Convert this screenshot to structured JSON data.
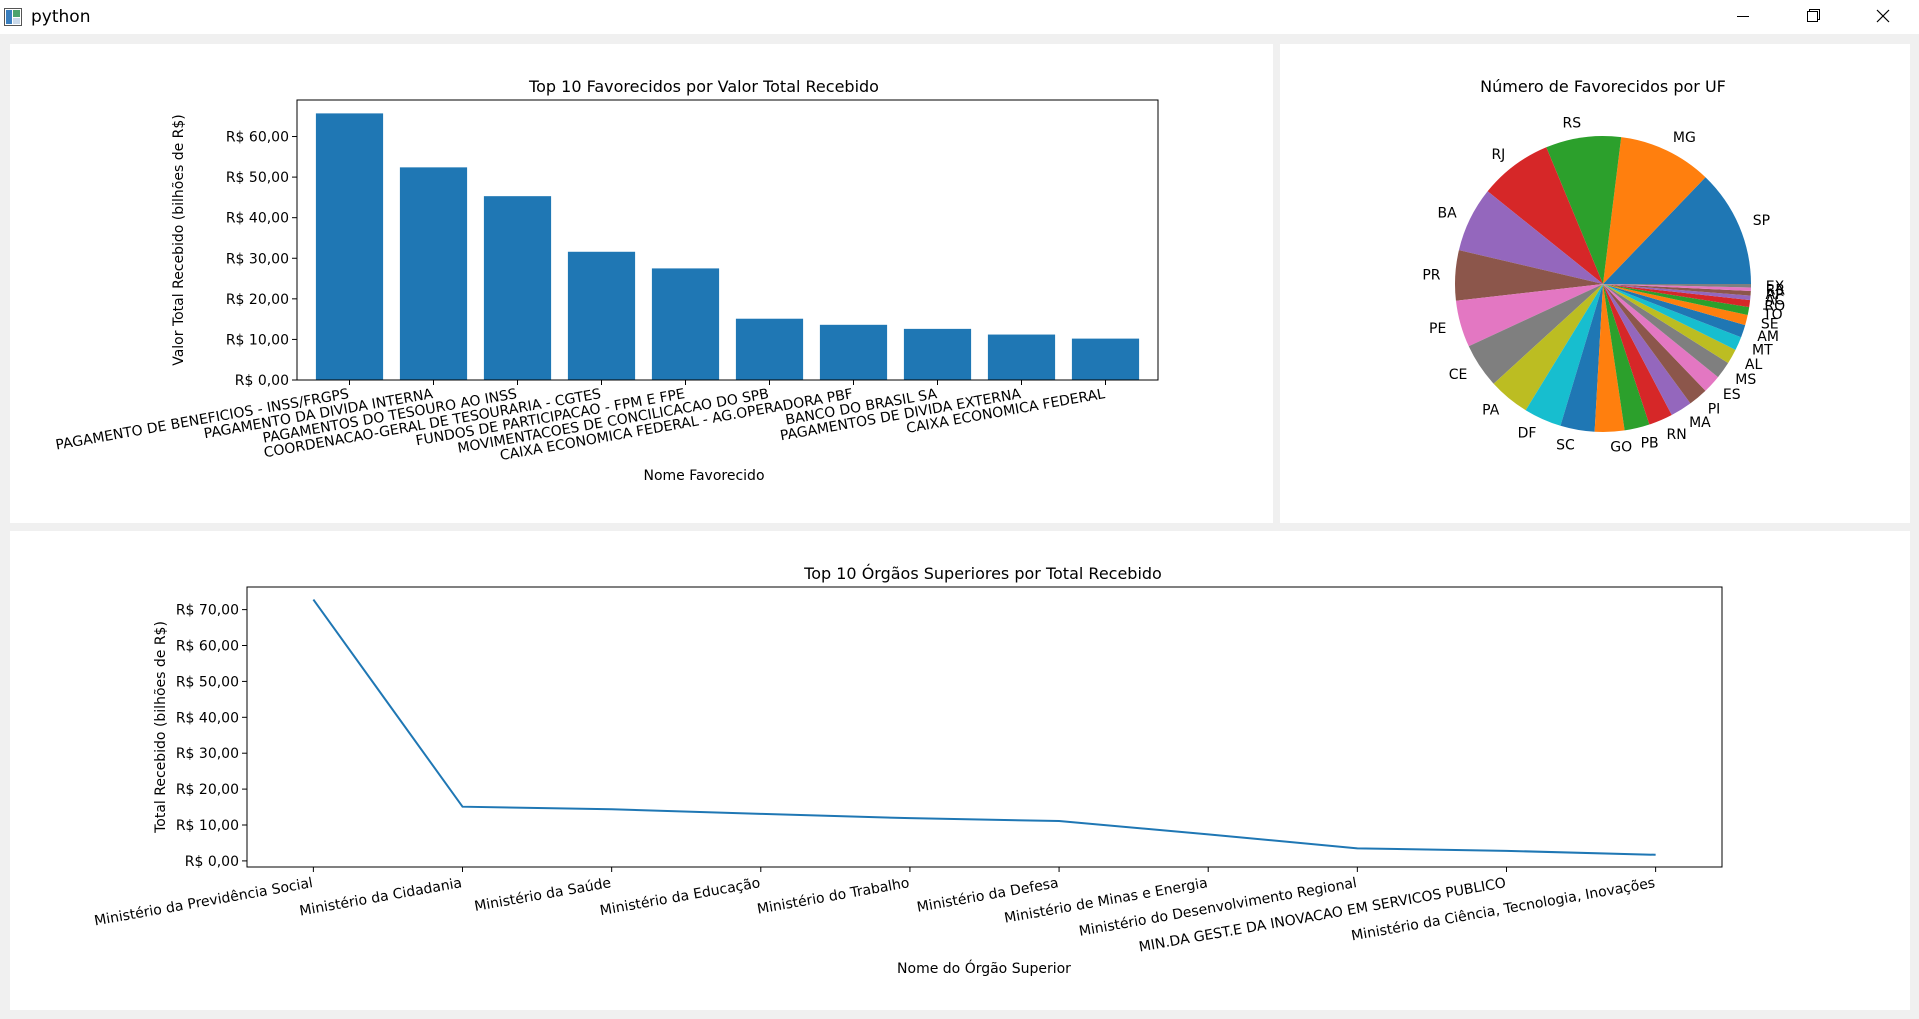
{
  "window": {
    "title": "python",
    "minimize_icon": "minimize-icon",
    "maximize_icon": "restore-icon",
    "close_icon": "close-icon"
  },
  "chart_data": [
    {
      "type": "bar",
      "title": "Top 10 Favorecidos por Valor Total Recebido",
      "xlabel": "Nome Favorecido",
      "ylabel": "Valor Total Recebido (bilhões de R$)",
      "categories": [
        "PAGAMENTO DE BENEFICIOS - INSS/FRGPS",
        "PAGAMENTO DA DIVIDA INTERNA",
        "PAGAMENTOS DO TESOURO AO INSS",
        "COORDENACAO-GERAL DE TESOURARIA - CGTES",
        "FUNDOS DE PARTICIPACAO - FPM E FPE",
        "MOVIMENTACOES DE CONCILICACAO DO SPB",
        "CAIXA ECONOMICA FEDERAL - AG.OPERADORA PBF",
        "BANCO DO BRASIL SA",
        "PAGAMENTOS DE DIVIDA EXTERNA",
        "CAIXA ECONOMICA FEDERAL"
      ],
      "values": [
        65.7,
        52.4,
        45.3,
        31.6,
        27.5,
        15.1,
        13.6,
        12.6,
        11.2,
        10.2
      ],
      "yticks": [
        "R$ 0,00",
        "R$ 10,00",
        "R$ 20,00",
        "R$ 30,00",
        "R$ 40,00",
        "R$ 50,00",
        "R$ 60,00"
      ],
      "ylim": [
        0,
        69
      ],
      "color": "#1f77b4",
      "grid": false
    },
    {
      "type": "pie",
      "title": "Número de Favorecidos por UF",
      "labels": [
        "SP",
        "MG",
        "RS",
        "RJ",
        "BA",
        "PR",
        "PE",
        "CE",
        "PA",
        "DF",
        "SC",
        "GO",
        "PB",
        "RN",
        "MA",
        "PI",
        "ES",
        "MS",
        "AL",
        "MT",
        "AM",
        "SE",
        "TO",
        "RO",
        "AC",
        "AP",
        "RR",
        "EX"
      ],
      "values": [
        10.3,
        8.2,
        6.6,
        6.4,
        5.7,
        4.4,
        4.1,
        3.9,
        3.6,
        3.3,
        3.0,
        2.6,
        2.2,
        2.1,
        1.9,
        1.7,
        1.6,
        1.5,
        1.3,
        1.2,
        1.1,
        0.9,
        0.7,
        0.6,
        0.4,
        0.4,
        0.3,
        0.3
      ],
      "colors": [
        "#1f77b4",
        "#ff7f0e",
        "#2ca02c",
        "#d62728",
        "#9467bd",
        "#8c564b",
        "#e377c2",
        "#7f7f7f",
        "#bcbd22",
        "#17becf"
      ]
    },
    {
      "type": "line",
      "title": "Top 10 Órgãos Superiores por Total Recebido",
      "xlabel": "Nome do Órgão Superior",
      "ylabel": "Total Recebido (bilhões de R$)",
      "categories": [
        "Ministério da Previdência Social",
        "Ministério da Cidadania",
        "Ministério da Saúde",
        "Ministério da Educação",
        "Ministério do Trabalho",
        "Ministério da Defesa",
        "Ministério de Minas e Energia",
        "Ministério do Desenvolvimento Regional",
        "MIN.DA GEST.E DA INOVACAO EM SERVICOS PUBLICO",
        "Ministério da Ciência, Tecnologia, Inovações"
      ],
      "values": [
        72.8,
        15.1,
        14.4,
        13.1,
        11.9,
        11.1,
        7.4,
        3.5,
        2.8,
        1.7
      ],
      "yticks": [
        "R$ 0,00",
        "R$ 10,00",
        "R$ 20,00",
        "R$ 30,00",
        "R$ 40,00",
        "R$ 50,00",
        "R$ 60,00",
        "R$ 70,00"
      ],
      "ylim": [
        -1.7,
        76.3
      ],
      "color": "#1f77b4",
      "grid": false
    }
  ]
}
